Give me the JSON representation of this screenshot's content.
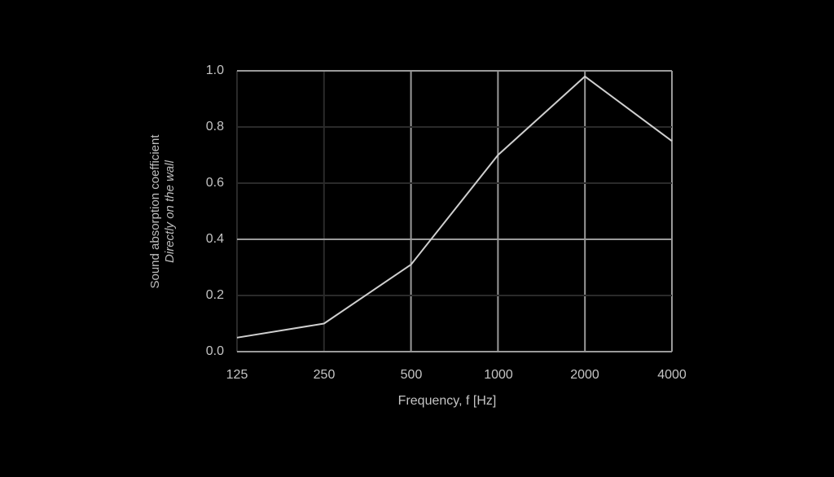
{
  "chart_data": {
    "type": "line",
    "title": "",
    "xlabel": "Frequency, f [Hz]",
    "ylabel": "Sound absorption coefficient",
    "ylabel_sub": "Directly on the wall",
    "x_scale": "log2",
    "x": [
      125,
      250,
      500,
      1000,
      2000,
      4000
    ],
    "x_tick_labels": [
      "125",
      "250",
      "500",
      "1000",
      "2000",
      "4000"
    ],
    "y_tick_labels": [
      "0.0",
      "0.2",
      "0.4",
      "0.6",
      "0.8",
      "1.0"
    ],
    "ylim": [
      0,
      1.0
    ],
    "grid": true,
    "legend": null,
    "series": [
      {
        "name": "Directly on the wall",
        "values": [
          0.05,
          0.1,
          0.31,
          0.7,
          0.98,
          0.75
        ]
      }
    ]
  },
  "colors": {
    "background": "#000000",
    "line": "#cfcfcf",
    "grid_dark": "#2a2a2a",
    "grid_light": "#9a9a9a",
    "text": "#c4c4c4"
  }
}
